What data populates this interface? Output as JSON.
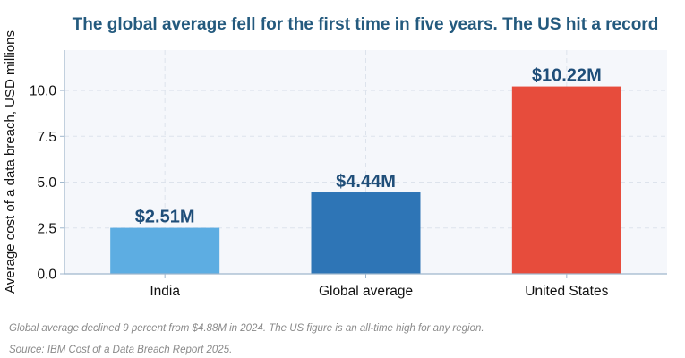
{
  "chart_data": {
    "type": "bar",
    "title": "The global average fell for the first time in five years. The US hit a record",
    "xlabel": "",
    "ylabel": "Average cost of a data breach, USD millions",
    "categories": [
      "India",
      "Global average",
      "United States"
    ],
    "values": [
      2.51,
      4.44,
      10.22
    ],
    "data_labels": [
      "$2.51M",
      "$4.44M",
      "$10.22M"
    ],
    "colors": [
      "#5dade2",
      "#2e75b6",
      "#e74c3c"
    ],
    "ylim": [
      0,
      12.2
    ],
    "yticks": [
      0,
      2.5,
      5,
      7.5,
      10
    ],
    "ytick_labels": [
      "0.0",
      "2.5",
      "5.0",
      "7.5",
      "10.0"
    ],
    "grid": true,
    "grid_color": "#dde3ec",
    "plot_background": "#f5f7fb",
    "label_color": "#1f4e79",
    "title_color": "#245a7e"
  },
  "notes": {
    "footnote": "Global average declined 9 percent from $4.88M in 2024. The US figure is an all-time high for any region.",
    "source": "Source: IBM Cost of a Data Breach Report 2025."
  }
}
